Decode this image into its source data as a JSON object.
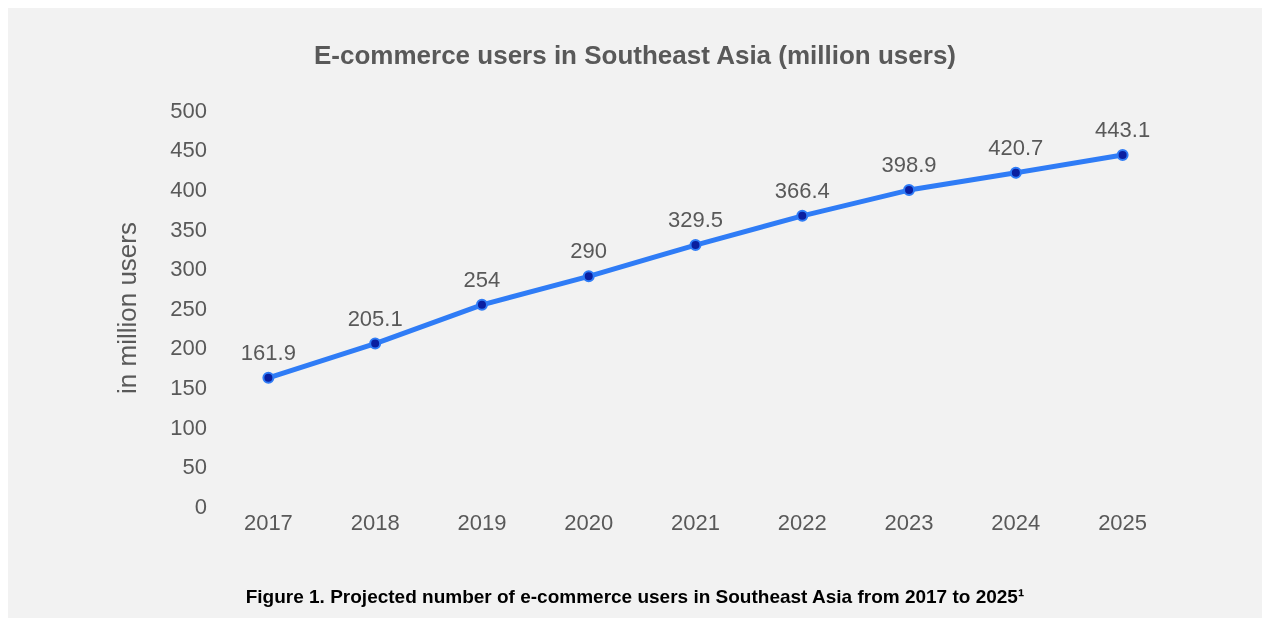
{
  "chart_data": {
    "type": "line",
    "title": "E-commerce users in Southeast Asia (million users)",
    "ylabel": "in million users",
    "categories": [
      "2017",
      "2018",
      "2019",
      "2020",
      "2021",
      "2022",
      "2023",
      "2024",
      "2025"
    ],
    "series": [
      {
        "color": "#2f7cf6",
        "values": [
          161.9,
          205.1,
          254,
          290,
          329.5,
          366.4,
          398.9,
          420.7,
          443.1
        ]
      }
    ],
    "ylim": [
      0,
      500
    ],
    "yticks": [
      0,
      50,
      100,
      150,
      200,
      250,
      300,
      350,
      400,
      450,
      500
    ],
    "marker": "circle",
    "data_labels": true,
    "annotations": [
      "Figure 1. Projected number of e-commerce users in Southeast Asia from 2017 to 2025¹"
    ]
  }
}
